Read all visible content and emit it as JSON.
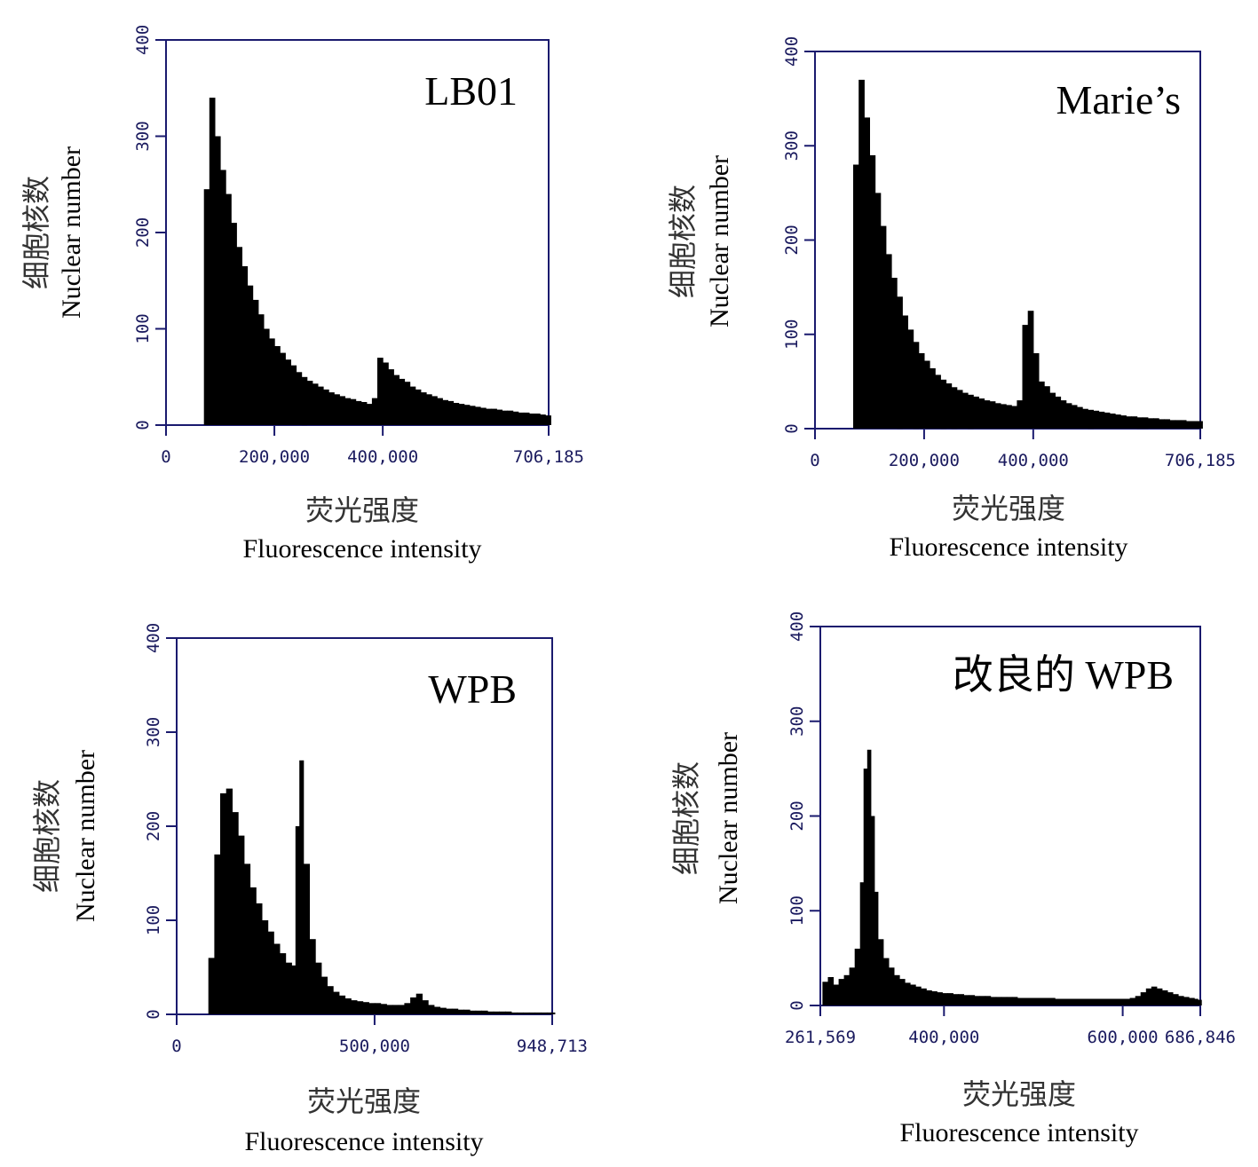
{
  "chart_data": [
    {
      "type": "bar",
      "title": "LB01",
      "xlabel_cn": "荧光强度",
      "xlabel_en": "Fluorescence intensity",
      "ylabel_cn": "细胞核数",
      "ylabel_en": "Nuclear number",
      "xlim": [
        0,
        706185
      ],
      "ylim": [
        0,
        400
      ],
      "x_ticks": [
        0,
        200000,
        400000,
        706185
      ],
      "x_tick_labels": [
        "0",
        "200,000",
        "400,000",
        "706,185"
      ],
      "y_ticks": [
        0,
        100,
        200,
        300,
        400
      ],
      "y_tick_labels": [
        "0",
        "100",
        "200",
        "300",
        "400"
      ],
      "x": [
        70000,
        80000,
        90000,
        100000,
        110000,
        120000,
        130000,
        140000,
        150000,
        160000,
        170000,
        180000,
        190000,
        200000,
        210000,
        220000,
        230000,
        240000,
        250000,
        260000,
        270000,
        280000,
        290000,
        300000,
        310000,
        320000,
        330000,
        340000,
        350000,
        360000,
        370000,
        380000,
        390000,
        400000,
        410000,
        420000,
        430000,
        440000,
        450000,
        460000,
        470000,
        480000,
        490000,
        500000,
        510000,
        520000,
        530000,
        540000,
        550000,
        560000,
        570000,
        580000,
        590000,
        600000,
        610000,
        620000,
        630000,
        640000,
        650000,
        660000,
        670000,
        680000,
        690000,
        700000
      ],
      "values": [
        245,
        340,
        300,
        265,
        240,
        210,
        185,
        165,
        145,
        130,
        115,
        100,
        90,
        82,
        75,
        68,
        62,
        55,
        50,
        46,
        43,
        40,
        37,
        34,
        32,
        30,
        28,
        27,
        25,
        24,
        22,
        28,
        70,
        65,
        58,
        52,
        48,
        45,
        40,
        37,
        34,
        32,
        30,
        28,
        26,
        25,
        23,
        22,
        21,
        20,
        19,
        18,
        17,
        17,
        16,
        15,
        15,
        14,
        13,
        13,
        12,
        12,
        11,
        10
      ]
    },
    {
      "type": "bar",
      "title": "Marie’s",
      "xlabel_cn": "荧光强度",
      "xlabel_en": "Fluorescence intensity",
      "ylabel_cn": "细胞核数",
      "ylabel_en": "Nuclear number",
      "xlim": [
        0,
        706185
      ],
      "ylim": [
        0,
        400
      ],
      "x_ticks": [
        0,
        200000,
        400000,
        706185
      ],
      "x_tick_labels": [
        "0",
        "200,000",
        "400,000",
        "706,185"
      ],
      "y_ticks": [
        0,
        100,
        200,
        300,
        400
      ],
      "y_tick_labels": [
        "0",
        "100",
        "200",
        "300",
        "400"
      ],
      "x": [
        70000,
        80000,
        90000,
        100000,
        110000,
        120000,
        130000,
        140000,
        150000,
        160000,
        170000,
        180000,
        190000,
        200000,
        210000,
        220000,
        230000,
        240000,
        250000,
        260000,
        270000,
        280000,
        290000,
        300000,
        310000,
        320000,
        330000,
        340000,
        350000,
        360000,
        370000,
        380000,
        390000,
        400000,
        410000,
        420000,
        430000,
        440000,
        450000,
        460000,
        470000,
        480000,
        490000,
        500000,
        510000,
        520000,
        530000,
        540000,
        550000,
        560000,
        570000,
        580000,
        590000,
        600000,
        610000,
        620000,
        630000,
        640000,
        650000,
        660000,
        670000,
        680000,
        690000,
        700000
      ],
      "values": [
        280,
        370,
        330,
        290,
        250,
        215,
        185,
        160,
        140,
        120,
        105,
        92,
        80,
        72,
        64,
        57,
        52,
        48,
        44,
        41,
        38,
        36,
        34,
        32,
        30,
        29,
        27,
        26,
        25,
        24,
        30,
        110,
        125,
        80,
        50,
        45,
        38,
        34,
        30,
        27,
        25,
        23,
        21,
        20,
        19,
        18,
        17,
        16,
        15,
        14,
        13,
        13,
        12,
        12,
        11,
        11,
        10,
        10,
        9,
        9,
        9,
        8,
        8,
        8
      ]
    },
    {
      "type": "bar",
      "title": "WPB",
      "xlabel_cn": "荧光强度",
      "xlabel_en": "Fluorescence intensity",
      "ylabel_cn": "细胞核数",
      "ylabel_en": "Nuclear number",
      "xlim": [
        0,
        948713
      ],
      "ylim": [
        0,
        400
      ],
      "x_ticks": [
        0,
        500000,
        948713
      ],
      "x_tick_labels": [
        "0",
        "500,000",
        "948,713"
      ],
      "y_ticks": [
        0,
        100,
        200,
        300,
        400
      ],
      "y_tick_labels": [
        "0",
        "100",
        "200",
        "300",
        "400"
      ],
      "x": [
        80000,
        95000,
        110000,
        125000,
        140000,
        155000,
        170000,
        185000,
        200000,
        215000,
        230000,
        245000,
        260000,
        275000,
        290000,
        300000,
        310000,
        320000,
        335000,
        350000,
        365000,
        380000,
        395000,
        410000,
        425000,
        440000,
        455000,
        470000,
        485000,
        500000,
        515000,
        530000,
        545000,
        560000,
        575000,
        590000,
        605000,
        620000,
        635000,
        650000,
        665000,
        680000,
        695000,
        710000,
        725000,
        740000,
        755000,
        770000,
        785000,
        800000,
        815000,
        830000,
        845000,
        860000,
        875000,
        890000,
        905000,
        920000,
        935000,
        945000
      ],
      "values": [
        60,
        170,
        235,
        240,
        215,
        190,
        160,
        135,
        118,
        100,
        88,
        75,
        65,
        55,
        52,
        200,
        270,
        160,
        80,
        55,
        40,
        30,
        24,
        20,
        17,
        15,
        14,
        13,
        12,
        12,
        11,
        10,
        10,
        10,
        12,
        18,
        22,
        15,
        10,
        8,
        7,
        6,
        6,
        5,
        5,
        4,
        4,
        4,
        3,
        3,
        3,
        3,
        2,
        2,
        2,
        2,
        2,
        2,
        2,
        2
      ]
    },
    {
      "type": "bar",
      "title": "改良的 WPB",
      "xlabel_cn": "荧光强度",
      "xlabel_en": "Fluorescence intensity",
      "ylabel_cn": "细胞核数",
      "ylabel_en": "Nuclear number",
      "xlim": [
        261569,
        686846
      ],
      "ylim": [
        0,
        400
      ],
      "x_ticks": [
        261569,
        400000,
        600000,
        686846
      ],
      "x_tick_labels": [
        "261,569",
        "400,000",
        "600,000",
        "686,846"
      ],
      "y_ticks": [
        0,
        100,
        200,
        300,
        400
      ],
      "y_tick_labels": [
        "0",
        "100",
        "200",
        "300",
        "400"
      ],
      "x": [
        264000,
        270000,
        276000,
        282000,
        288000,
        294000,
        300000,
        306000,
        310000,
        314000,
        318000,
        322000,
        326000,
        332000,
        338000,
        344000,
        350000,
        356000,
        362000,
        368000,
        374000,
        380000,
        386000,
        392000,
        398000,
        404000,
        410000,
        416000,
        422000,
        428000,
        434000,
        440000,
        446000,
        452000,
        458000,
        464000,
        470000,
        476000,
        482000,
        488000,
        494000,
        500000,
        506000,
        512000,
        518000,
        524000,
        530000,
        536000,
        542000,
        548000,
        554000,
        560000,
        566000,
        572000,
        578000,
        584000,
        590000,
        596000,
        602000,
        608000,
        614000,
        620000,
        626000,
        632000,
        638000,
        644000,
        650000,
        656000,
        662000,
        668000,
        674000,
        680000,
        684000
      ],
      "values": [
        25,
        30,
        22,
        28,
        32,
        40,
        60,
        130,
        250,
        270,
        200,
        120,
        70,
        50,
        40,
        32,
        28,
        24,
        22,
        20,
        18,
        16,
        15,
        14,
        13,
        13,
        12,
        12,
        11,
        11,
        10,
        10,
        10,
        9,
        9,
        9,
        9,
        9,
        8,
        8,
        8,
        8,
        8,
        8,
        8,
        7,
        7,
        7,
        7,
        7,
        7,
        7,
        7,
        7,
        7,
        7,
        7,
        7,
        7,
        8,
        10,
        14,
        18,
        20,
        18,
        16,
        14,
        12,
        10,
        9,
        8,
        7,
        6
      ]
    }
  ]
}
